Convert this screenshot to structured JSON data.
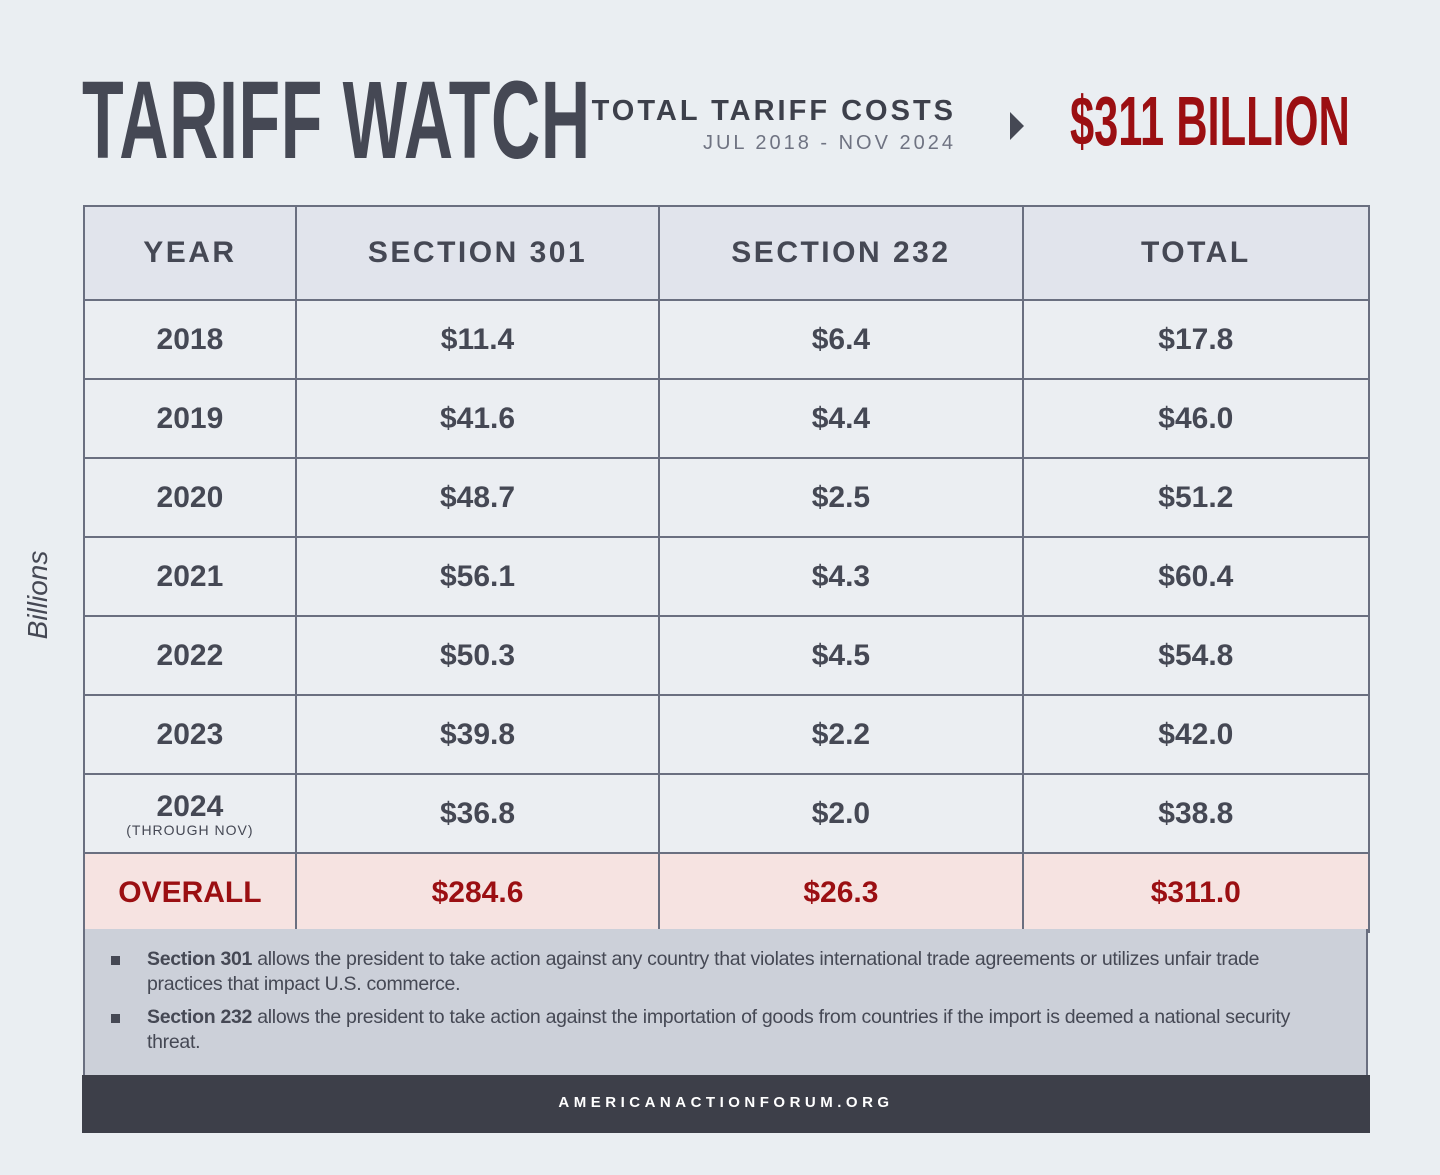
{
  "header": {
    "title": "TARIFF WATCH",
    "subtitle": "TOTAL TARIFF COSTS",
    "date_range": "JUL 2018 - NOV 2024",
    "total": "$311 BILLION",
    "arrow_icon": "triangle-right"
  },
  "y_label": "Billions",
  "colors": {
    "accent": "#9b0f12",
    "dark": "#3d3f49",
    "overall_bg": "#f6e3e1"
  },
  "chart_data": {
    "type": "table",
    "columns": [
      "YEAR",
      "SECTION 301",
      "SECTION 232",
      "TOTAL"
    ],
    "rows": [
      {
        "year": "2018",
        "note": "",
        "s301": "$11.4",
        "s232": "$6.4",
        "total": "$17.8"
      },
      {
        "year": "2019",
        "note": "",
        "s301": "$41.6",
        "s232": "$4.4",
        "total": "$46.0"
      },
      {
        "year": "2020",
        "note": "",
        "s301": "$48.7",
        "s232": "$2.5",
        "total": "$51.2"
      },
      {
        "year": "2021",
        "note": "",
        "s301": "$56.1",
        "s232": "$4.3",
        "total": "$60.4"
      },
      {
        "year": "2022",
        "note": "",
        "s301": "$50.3",
        "s232": "$4.5",
        "total": "$54.8"
      },
      {
        "year": "2023",
        "note": "",
        "s301": "$39.8",
        "s232": "$2.2",
        "total": "$42.0"
      },
      {
        "year": "2024",
        "note": "(THROUGH NOV)",
        "s301": "$36.8",
        "s232": "$2.0",
        "total": "$38.8"
      }
    ],
    "overall": {
      "label": "OVERALL",
      "s301": "$284.6",
      "s232": "$26.3",
      "total": "$311.0"
    }
  },
  "notes": [
    {
      "bold": "Section 301",
      "text": " allows the president to take action against any country that violates international trade agreements or utilizes unfair trade practices that impact U.S. commerce."
    },
    {
      "bold": "Section 232",
      "text": " allows the president to take action against the importation of goods from countries if the import is deemed a national security threat."
    }
  ],
  "footer": "AMERICANACTIONFORUM.ORG"
}
